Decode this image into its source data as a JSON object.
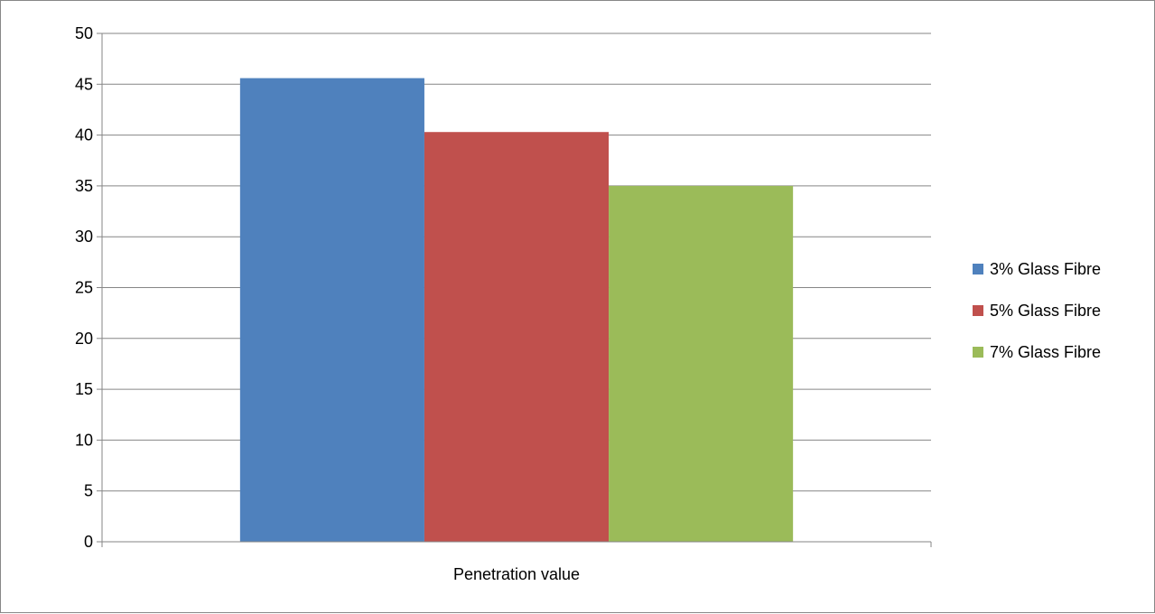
{
  "chart_data": {
    "type": "bar",
    "categories": [
      "Penetration value"
    ],
    "series": [
      {
        "name": "3% Glass Fibre",
        "values": [
          45.6
        ],
        "color": "#4F81BD"
      },
      {
        "name": "5% Glass Fibre",
        "values": [
          40.3
        ],
        "color": "#C0504D"
      },
      {
        "name": "7% Glass Fibre",
        "values": [
          35
        ],
        "color": "#9BBB59"
      }
    ],
    "yticks": [
      "0",
      "5",
      "10",
      "15",
      "20",
      "25",
      "30",
      "35",
      "40",
      "45",
      "50"
    ],
    "ylim": [
      0,
      50
    ],
    "grid": true,
    "legend_position": "right",
    "colors": {
      "gridline": "#868686",
      "axis": "#868686"
    }
  }
}
